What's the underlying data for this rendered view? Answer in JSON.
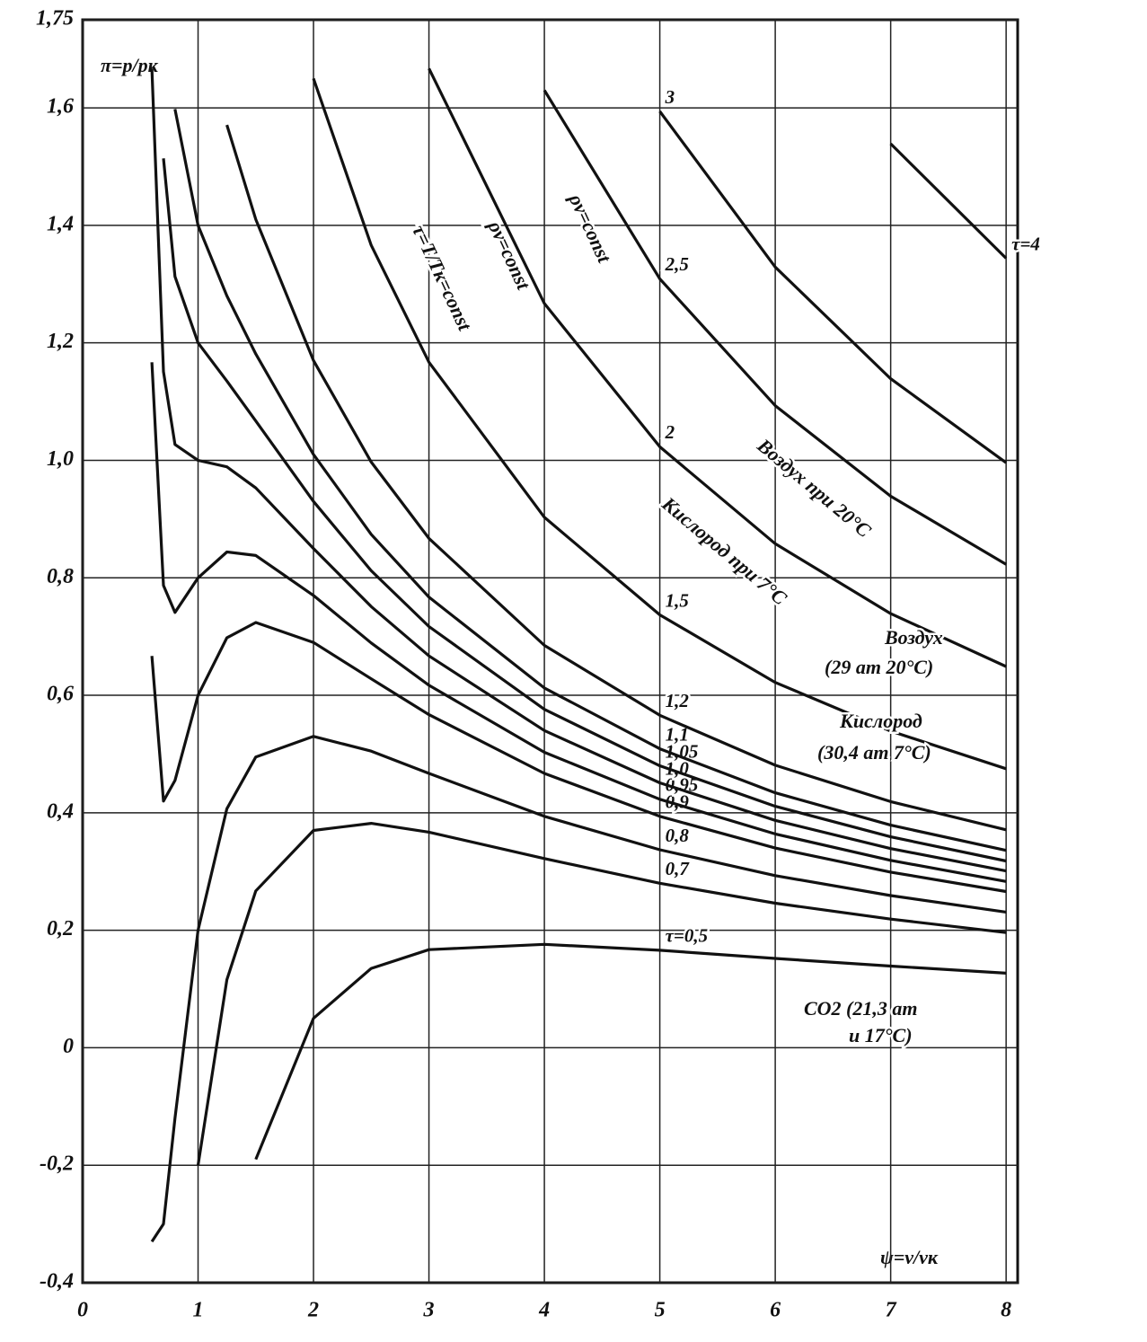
{
  "chart_data": {
    "type": "line",
    "x": [
      0.6,
      0.7,
      0.8,
      1,
      1.25,
      1.5,
      2,
      2.5,
      3,
      4,
      5,
      6,
      7,
      8
    ],
    "xlim": [
      0,
      8.1
    ],
    "xticks": [
      0,
      1,
      2,
      3,
      4,
      5,
      6,
      7,
      8
    ],
    "ylim": [
      -0.4,
      1.75
    ],
    "yticks": [
      {
        "value": -0.4,
        "label": "-0,4"
      },
      {
        "value": -0.2,
        "label": "-0,2"
      },
      0,
      {
        "value": 0.2,
        "label": "0,2"
      },
      {
        "value": 0.4,
        "label": "0,4"
      },
      {
        "value": 0.6,
        "label": "0,6"
      },
      {
        "value": 0.8,
        "label": "0,8"
      },
      {
        "value": 1.0,
        "label": "1,0"
      },
      {
        "value": 1.2,
        "label": "1,2"
      },
      {
        "value": 1.4,
        "label": "1,4"
      },
      {
        "value": 1.6,
        "label": "1,6"
      },
      {
        "value": 1.75,
        "label": "1,75"
      }
    ],
    "grid": true,
    "y_label": "π=p/pк",
    "x_label": "ψ=v/vк",
    "annotations": [
      "τ=T/Tк=const",
      "ρv=const",
      "ρv=const",
      "Воздух при 20°C",
      "Кислород при 7°C",
      "Воздух",
      "(29 ат 20°C)",
      "Кислород",
      "(30,4 ат 7°C)",
      "CO2 (21,3 ат",
      "и 17°C)"
    ],
    "series": [
      {
        "name": "τ=0,5",
        "color": "#111111",
        "values": [
          null,
          null,
          null,
          null,
          null,
          -0.19,
          0.05,
          0.135,
          0.167,
          0.176,
          0.166,
          0.152,
          0.139,
          0.127
        ]
      },
      {
        "name": "0,7",
        "color": "#111111",
        "values": [
          null,
          null,
          null,
          -0.2,
          0.116,
          0.267,
          0.37,
          0.382,
          0.367,
          0.322,
          0.28,
          0.246,
          0.219,
          0.196
        ]
      },
      {
        "name": "0,8",
        "color": "#111111",
        "values": [
          -0.33,
          -0.3,
          -0.12,
          0.2,
          0.407,
          0.495,
          0.53,
          0.505,
          0.467,
          0.394,
          0.337,
          0.293,
          0.259,
          0.231
        ]
      },
      {
        "name": "0,9",
        "color": "#111111",
        "values": [
          0.667,
          0.42,
          0.455,
          0.6,
          0.698,
          0.724,
          0.69,
          0.628,
          0.567,
          0.467,
          0.394,
          0.34,
          0.299,
          0.266
        ]
      },
      {
        "name": "0,95",
        "color": "#111111",
        "values": [
          1.167,
          0.787,
          0.741,
          0.8,
          0.844,
          0.838,
          0.77,
          0.689,
          0.617,
          0.503,
          0.423,
          0.364,
          0.319,
          0.283
        ]
      },
      {
        "name": "1,0",
        "color": "#111111",
        "values": [
          1.667,
          1.151,
          1.027,
          1.0,
          0.989,
          0.953,
          0.85,
          0.751,
          0.667,
          0.54,
          0.451,
          0.387,
          0.339,
          0.301
        ]
      },
      {
        "name": "1,05",
        "color": "#111111",
        "values": [
          null,
          1.514,
          1.313,
          1.2,
          1.135,
          1.067,
          0.93,
          0.812,
          0.717,
          0.576,
          0.48,
          0.411,
          0.359,
          0.318
        ]
      },
      {
        "name": "1,1",
        "color": "#111111",
        "values": [
          null,
          null,
          1.598,
          1.4,
          1.28,
          1.181,
          1.01,
          0.874,
          0.767,
          0.6125,
          0.509,
          0.434,
          0.379,
          0.336
        ]
      },
      {
        "name": "1,2",
        "color": "#111111",
        "values": [
          null,
          null,
          null,
          null,
          1.571,
          1.41,
          1.17,
          0.997,
          0.867,
          0.685,
          0.566,
          0.481,
          0.419,
          0.371
        ]
      },
      {
        "name": "1,5",
        "color": "#111111",
        "values": [
          null,
          null,
          null,
          null,
          null,
          null,
          1.65,
          1.366,
          1.167,
          0.903,
          0.737,
          0.622,
          0.539,
          0.475
        ]
      },
      {
        "name": "2",
        "color": "#111111",
        "values": [
          null,
          null,
          null,
          null,
          null,
          null,
          null,
          null,
          1.667,
          1.267,
          1.023,
          0.858,
          0.739,
          0.649
        ]
      },
      {
        "name": "2,5",
        "color": "#111111",
        "values": [
          null,
          null,
          null,
          null,
          null,
          null,
          null,
          null,
          null,
          1.63,
          1.309,
          1.093,
          0.939,
          0.823
        ]
      },
      {
        "name": "3",
        "color": "#111111",
        "values": [
          null,
          null,
          null,
          null,
          null,
          null,
          null,
          null,
          null,
          null,
          1.594,
          1.329,
          1.139,
          0.996
        ]
      },
      {
        "name": "τ=4",
        "color": "#111111",
        "values": [
          null,
          null,
          null,
          null,
          null,
          null,
          null,
          null,
          null,
          null,
          null,
          null,
          1.539,
          1.344
        ]
      }
    ]
  }
}
